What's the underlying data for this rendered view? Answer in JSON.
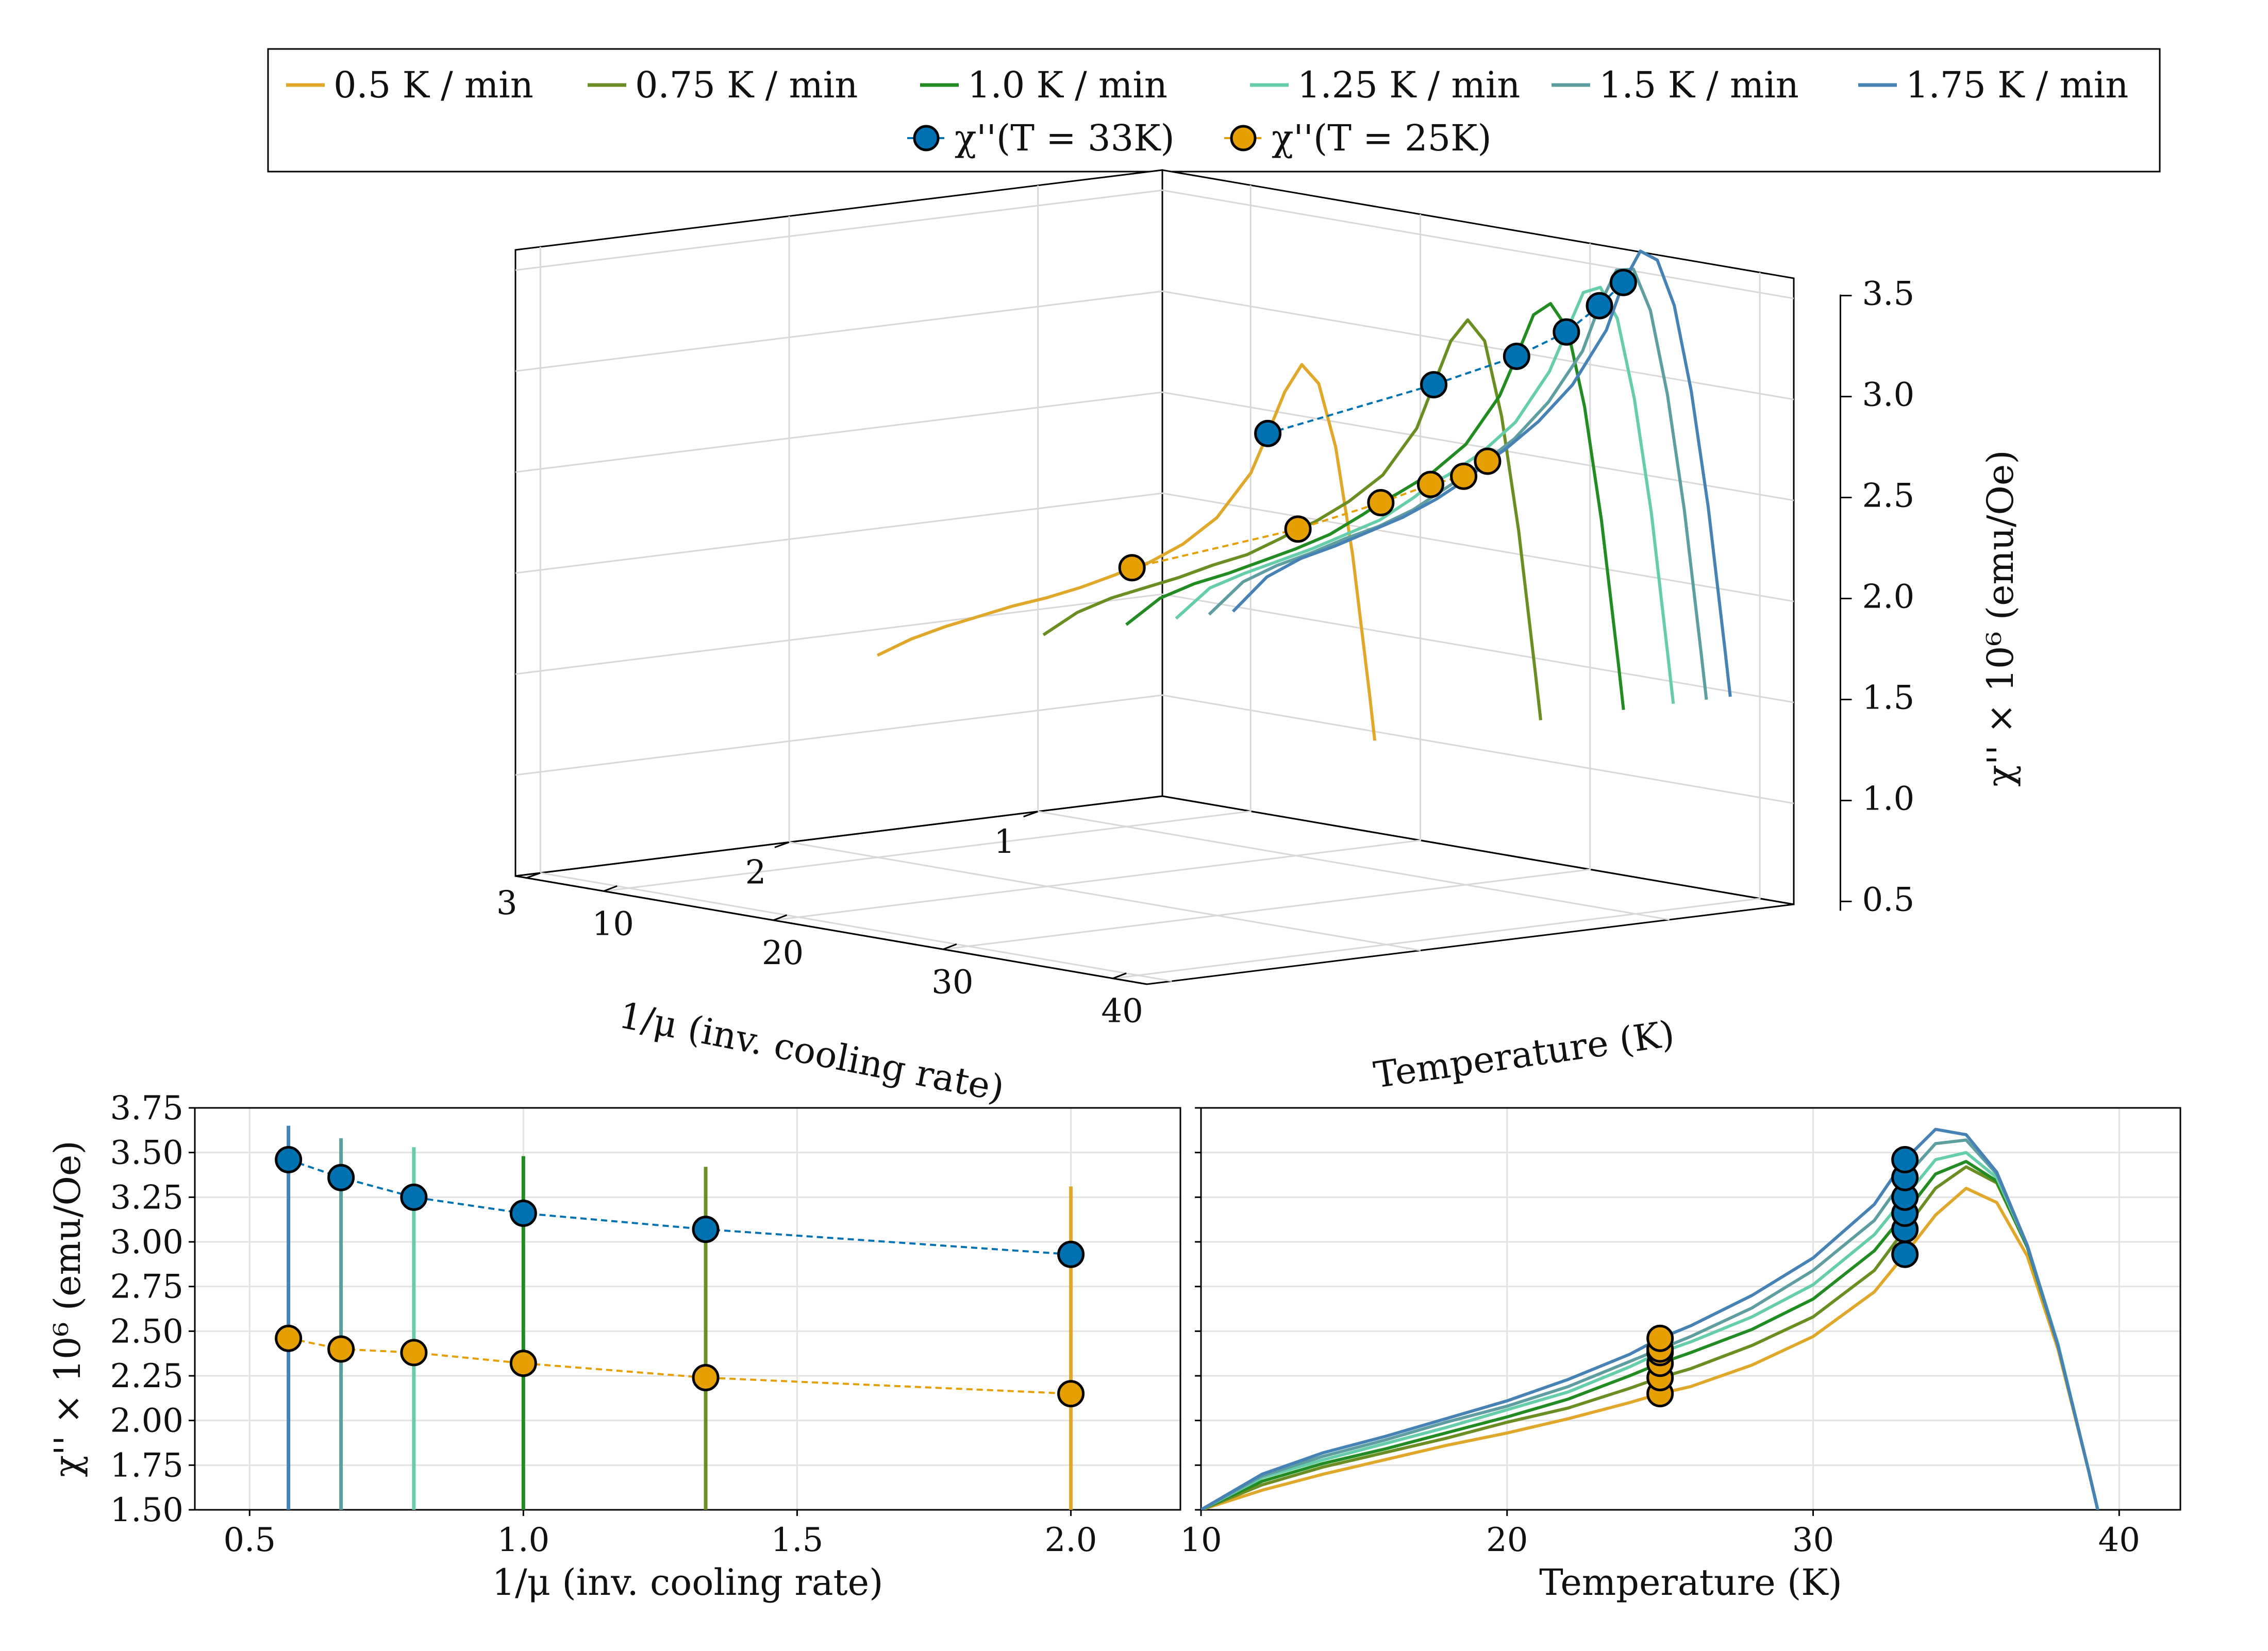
{
  "figure": {
    "legend": {
      "entries": [
        {
          "label": "0.5 K / min",
          "color": "#E0A82A",
          "kind": "line"
        },
        {
          "label": "0.75 K / min",
          "color": "#6B8E23",
          "kind": "line"
        },
        {
          "label": "1.0 K / min",
          "color": "#228B22",
          "kind": "line"
        },
        {
          "label": "1.25 K / min",
          "color": "#66CDAA",
          "kind": "line"
        },
        {
          "label": "1.5 K / min",
          "color": "#5F9EA0",
          "kind": "line"
        },
        {
          "label": "1.75 K / min",
          "color": "#4682B4",
          "kind": "line"
        },
        {
          "label": "χ''(T = 33K)",
          "color": "#0072B2",
          "kind": "marker"
        },
        {
          "label": "χ''(T = 25K)",
          "color": "#E69F00",
          "kind": "marker"
        }
      ]
    }
  },
  "chart_data": [
    {
      "id": "panel-3d",
      "type": "line",
      "title": "",
      "xlabel": "1/μ (inv. cooling rate)",
      "ylabel": "Temperature (K)",
      "zlabel": "χ'' × 10⁶ (emu/Oe)",
      "xticks": [
        "1",
        "2",
        "3"
      ],
      "yticks": [
        "10",
        "20",
        "30",
        "40"
      ],
      "zticks": [
        "0.5",
        "1.0",
        "1.5",
        "2.0",
        "2.5",
        "3.0",
        "3.5"
      ],
      "zlim": [
        0.5,
        3.5
      ],
      "grid": true,
      "series": [
        {
          "name": "0.5 K / min",
          "inv_rate": 2.0,
          "color": "#E0A82A"
        },
        {
          "name": "0.75 K / min",
          "inv_rate": 1.333,
          "color": "#6B8E23"
        },
        {
          "name": "1.0 K / min",
          "inv_rate": 1.0,
          "color": "#228B22"
        },
        {
          "name": "1.25 K / min",
          "inv_rate": 0.8,
          "color": "#66CDAA"
        },
        {
          "name": "1.5 K / min",
          "inv_rate": 0.667,
          "color": "#5F9EA0"
        },
        {
          "name": "1.75 K / min",
          "inv_rate": 0.571,
          "color": "#4682B4"
        }
      ],
      "markers_33K": {
        "x": [
          2.0,
          1.333,
          1.0,
          0.8,
          0.667,
          0.571
        ],
        "z": [
          2.93,
          3.07,
          3.16,
          3.25,
          3.36,
          3.46
        ]
      },
      "markers_25K": {
        "x": [
          2.0,
          1.333,
          1.0,
          0.8,
          0.667,
          0.571
        ],
        "z": [
          2.15,
          2.24,
          2.32,
          2.38,
          2.4,
          2.46
        ]
      }
    },
    {
      "id": "panel-rate",
      "type": "scatter",
      "xlabel": "1/μ (inv. cooling rate)",
      "ylabel": "χ'' × 10⁶ (emu/Oe)",
      "xlim": [
        0.4,
        2.2
      ],
      "ylim": [
        1.5,
        3.75
      ],
      "xticks": [
        0.5,
        1.0,
        1.5,
        2.0
      ],
      "xticklabels": [
        "0.5",
        "1.0",
        "1.5",
        "2.0"
      ],
      "yticks": [
        1.5,
        1.75,
        2.0,
        2.25,
        2.5,
        2.75,
        3.0,
        3.25,
        3.5,
        3.75
      ],
      "yticklabels": [
        "1.50",
        "1.75",
        "2.00",
        "2.25",
        "2.50",
        "2.75",
        "3.00",
        "3.25",
        "3.50",
        "3.75"
      ],
      "grid": true,
      "vlines": [
        {
          "x": 0.571,
          "ymax": 3.65,
          "color": "#4682B4"
        },
        {
          "x": 0.667,
          "ymax": 3.58,
          "color": "#5F9EA0"
        },
        {
          "x": 0.8,
          "ymax": 3.53,
          "color": "#66CDAA"
        },
        {
          "x": 1.0,
          "ymax": 3.48,
          "color": "#228B22"
        },
        {
          "x": 1.333,
          "ymax": 3.42,
          "color": "#6B8E23"
        },
        {
          "x": 2.0,
          "ymax": 3.31,
          "color": "#E0A82A"
        }
      ],
      "series": [
        {
          "name": "χ''(T = 33K)",
          "color": "#0072B2",
          "x": [
            0.571,
            0.667,
            0.8,
            1.0,
            1.333,
            2.0
          ],
          "y": [
            3.46,
            3.36,
            3.25,
            3.16,
            3.07,
            2.93
          ]
        },
        {
          "name": "χ''(T = 25K)",
          "color": "#E69F00",
          "x": [
            0.571,
            0.667,
            0.8,
            1.0,
            1.333,
            2.0
          ],
          "y": [
            2.46,
            2.4,
            2.38,
            2.32,
            2.24,
            2.15
          ]
        }
      ]
    },
    {
      "id": "panel-temp",
      "type": "line",
      "xlabel": "Temperature (K)",
      "ylabel": "",
      "xlim": [
        10,
        42
      ],
      "ylim": [
        1.5,
        3.75
      ],
      "xticks": [
        10,
        20,
        30,
        40
      ],
      "xticklabels": [
        "10",
        "20",
        "30",
        "40"
      ],
      "yticks": [
        1.5,
        1.75,
        2.0,
        2.25,
        2.5,
        2.75,
        3.0,
        3.25,
        3.5,
        3.75
      ],
      "grid": true,
      "T": [
        10,
        12,
        14,
        16,
        18,
        20,
        22,
        24,
        25,
        26,
        28,
        30,
        32,
        33,
        34,
        35,
        36,
        37,
        38,
        39,
        39.3
      ],
      "series": [
        {
          "name": "0.5 K / min",
          "color": "#E0A82A",
          "values": [
            1.5,
            1.61,
            1.7,
            1.78,
            1.86,
            1.93,
            2.01,
            2.1,
            2.15,
            2.19,
            2.31,
            2.47,
            2.72,
            2.93,
            3.15,
            3.3,
            3.22,
            2.92,
            2.4,
            1.72,
            1.5
          ]
        },
        {
          "name": "0.75 K / min",
          "color": "#6B8E23",
          "values": [
            1.5,
            1.64,
            1.74,
            1.82,
            1.9,
            1.99,
            2.07,
            2.18,
            2.24,
            2.29,
            2.42,
            2.58,
            2.84,
            3.07,
            3.3,
            3.42,
            3.33,
            2.97,
            2.42,
            1.72,
            1.5
          ]
        },
        {
          "name": "1.0 K / min",
          "color": "#228B22",
          "values": [
            1.5,
            1.66,
            1.76,
            1.84,
            1.93,
            2.02,
            2.12,
            2.25,
            2.32,
            2.38,
            2.51,
            2.68,
            2.95,
            3.16,
            3.38,
            3.45,
            3.34,
            2.97,
            2.42,
            1.72,
            1.5
          ]
        },
        {
          "name": "1.25 K / min",
          "color": "#66CDAA",
          "values": [
            1.5,
            1.68,
            1.78,
            1.87,
            1.96,
            2.06,
            2.16,
            2.3,
            2.38,
            2.44,
            2.58,
            2.76,
            3.04,
            3.25,
            3.46,
            3.5,
            3.36,
            2.98,
            2.43,
            1.72,
            1.5
          ]
        },
        {
          "name": "1.5 K / min",
          "color": "#5F9EA0",
          "values": [
            1.5,
            1.69,
            1.8,
            1.89,
            1.99,
            2.08,
            2.19,
            2.33,
            2.4,
            2.47,
            2.63,
            2.84,
            3.12,
            3.36,
            3.55,
            3.57,
            3.38,
            2.98,
            2.42,
            1.72,
            1.5
          ]
        },
        {
          "name": "1.75 K / min",
          "color": "#4682B4",
          "values": [
            1.5,
            1.7,
            1.82,
            1.91,
            2.01,
            2.11,
            2.23,
            2.37,
            2.46,
            2.53,
            2.7,
            2.91,
            3.21,
            3.46,
            3.63,
            3.6,
            3.39,
            2.98,
            2.42,
            1.72,
            1.5
          ]
        }
      ],
      "markers_33K": {
        "x": 33,
        "y": [
          2.93,
          3.07,
          3.16,
          3.25,
          3.36,
          3.46
        ]
      },
      "markers_25K": {
        "x": 25,
        "y": [
          2.15,
          2.24,
          2.32,
          2.38,
          2.4,
          2.46
        ]
      }
    }
  ]
}
